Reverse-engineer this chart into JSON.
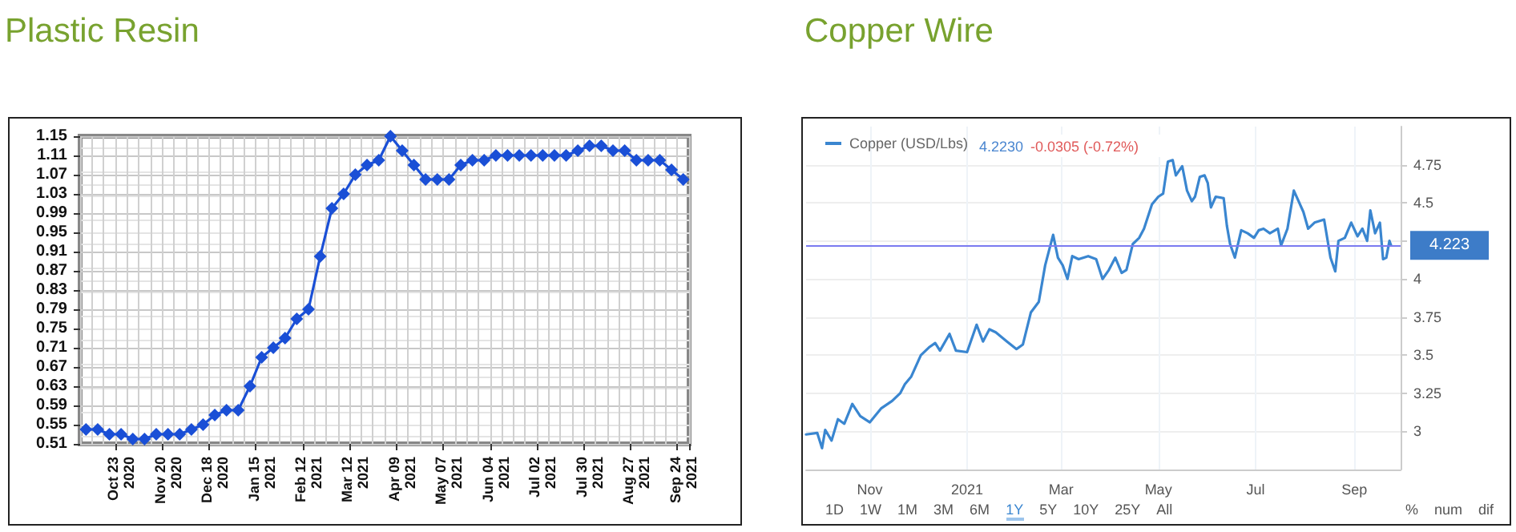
{
  "chart_data": [
    {
      "type": "line",
      "title": "Plastic Resin",
      "categories": [
        null,
        null,
        null,
        "Oct 23\n2020",
        null,
        null,
        null,
        "Nov 20\n2020",
        null,
        null,
        null,
        "Dec 18\n2020",
        null,
        null,
        null,
        "Jan 15\n2021",
        null,
        null,
        null,
        "Feb 12\n2021",
        null,
        null,
        null,
        "Mar 12\n2021",
        null,
        null,
        null,
        "Apr 09\n2021",
        null,
        null,
        null,
        "May 07\n2021",
        null,
        null,
        null,
        "Jun 04\n2021",
        null,
        null,
        null,
        "Jul 02\n2021",
        null,
        null,
        null,
        "Jul 30\n2021",
        null,
        null,
        null,
        "Aug 27\n2021",
        null,
        null,
        null,
        "Sep 24\n2021"
      ],
      "series": [
        {
          "color": "#1a4fd6",
          "values": [
            0.54,
            0.54,
            0.53,
            0.53,
            0.52,
            0.52,
            0.53,
            0.53,
            0.53,
            0.54,
            0.55,
            0.57,
            0.58,
            0.58,
            0.63,
            0.69,
            0.71,
            0.73,
            0.77,
            0.79,
            0.9,
            1.0,
            1.03,
            1.07,
            1.09,
            1.1,
            1.15,
            1.12,
            1.09,
            1.06,
            1.06,
            1.06,
            1.09,
            1.1,
            1.1,
            1.11,
            1.11,
            1.11,
            1.11,
            1.11,
            1.11,
            1.11,
            1.12,
            1.13,
            1.13,
            1.12,
            1.12,
            1.1,
            1.1,
            1.1,
            1.08,
            1.06
          ]
        }
      ],
      "ylim": [
        0.51,
        1.15
      ],
      "yticks": [
        0.51,
        0.55,
        0.59,
        0.63,
        0.67,
        0.71,
        0.75,
        0.79,
        0.83,
        0.87,
        0.91,
        0.95,
        0.99,
        1.03,
        1.07,
        1.11,
        1.15
      ],
      "grid": true,
      "marker": "diamond"
    },
    {
      "type": "line",
      "title": "Copper Wire",
      "x": [
        "2020-09-22",
        "2020-09-29",
        "2020-10-02",
        "2020-10-04",
        "2020-10-08",
        "2020-10-12",
        "2020-10-16",
        "2020-10-21",
        "2020-10-26",
        "2020-11-01",
        "2020-11-08",
        "2020-11-15",
        "2020-11-20",
        "2020-11-23",
        "2020-11-27",
        "2020-12-03",
        "2020-12-08",
        "2020-12-12",
        "2020-12-15",
        "2020-12-21",
        "2020-12-25",
        "2021-01-01",
        "2021-01-07",
        "2021-01-11",
        "2021-01-15",
        "2021-01-19",
        "2021-01-26",
        "2021-02-01",
        "2021-02-05",
        "2021-02-10",
        "2021-02-15",
        "2021-02-19",
        "2021-02-24",
        "2021-02-27",
        "2021-03-02",
        "2021-03-05",
        "2021-03-08",
        "2021-03-12",
        "2021-03-18",
        "2021-03-23",
        "2021-03-27",
        "2021-03-31",
        "2021-04-04",
        "2021-04-08",
        "2021-04-11",
        "2021-04-15",
        "2021-04-19",
        "2021-04-22",
        "2021-04-27",
        "2021-05-01",
        "2021-05-04",
        "2021-05-07",
        "2021-05-10",
        "2021-05-12",
        "2021-05-16",
        "2021-05-19",
        "2021-05-22",
        "2021-05-24",
        "2021-05-27",
        "2021-05-30",
        "2021-06-01",
        "2021-06-03",
        "2021-06-06",
        "2021-06-11",
        "2021-06-13",
        "2021-06-15",
        "2021-06-18",
        "2021-06-22",
        "2021-06-26",
        "2021-06-30",
        "2021-07-03",
        "2021-07-06",
        "2021-07-10",
        "2021-07-15",
        "2021-07-17",
        "2021-07-21",
        "2021-07-25",
        "2021-07-28",
        "2021-07-31",
        "2021-08-03",
        "2021-08-07",
        "2021-08-13",
        "2021-08-17",
        "2021-08-20",
        "2021-08-22",
        "2021-08-26",
        "2021-08-30",
        "2021-09-03",
        "2021-09-06",
        "2021-09-09",
        "2021-09-11",
        "2021-09-14",
        "2021-09-17",
        "2021-09-19",
        "2021-09-21",
        "2021-09-23",
        "2021-09-24"
      ],
      "series": [
        {
          "name": "Copper (USD/Lbs)",
          "color": "#3a86d0",
          "values": [
            2.98,
            2.99,
            2.89,
            3.01,
            2.94,
            3.08,
            3.05,
            3.18,
            3.1,
            3.06,
            3.15,
            3.2,
            3.25,
            3.31,
            3.36,
            3.5,
            3.55,
            3.58,
            3.53,
            3.64,
            3.53,
            3.52,
            3.7,
            3.59,
            3.67,
            3.65,
            3.59,
            3.54,
            3.57,
            3.78,
            3.85,
            4.09,
            4.29,
            4.14,
            4.09,
            4.0,
            4.15,
            4.13,
            4.15,
            4.13,
            4.0,
            4.06,
            4.14,
            4.04,
            4.06,
            4.23,
            4.27,
            4.33,
            4.49,
            4.54,
            4.56,
            4.77,
            4.78,
            4.68,
            4.74,
            4.58,
            4.51,
            4.54,
            4.67,
            4.68,
            4.63,
            4.47,
            4.54,
            4.53,
            4.35,
            4.23,
            4.14,
            4.32,
            4.3,
            4.27,
            4.32,
            4.33,
            4.3,
            4.33,
            4.22,
            4.33,
            4.58,
            4.51,
            4.44,
            4.33,
            4.37,
            4.39,
            4.14,
            4.05,
            4.25,
            4.27,
            4.37,
            4.28,
            4.33,
            4.25,
            4.45,
            4.3,
            4.37,
            4.13,
            4.14,
            4.25,
            4.22
          ]
        }
      ],
      "xlim": [
        "2020-09-22",
        "2021-09-30"
      ],
      "xticks": [
        {
          "value": "2020-11-01",
          "label": "Nov"
        },
        {
          "value": "2021-01-01",
          "label": "2021"
        },
        {
          "value": "2021-03-01",
          "label": "Mar"
        },
        {
          "value": "2021-05-01",
          "label": "May"
        },
        {
          "value": "2021-07-01",
          "label": "Jul"
        },
        {
          "value": "2021-09-01",
          "label": "Sep"
        }
      ],
      "ylim": [
        2.75,
        5
      ],
      "yticks": [
        3,
        3.25,
        3.5,
        3.75,
        4,
        {
          "value": 4.25,
          "label": null
        },
        4.5,
        4.75
      ],
      "ref_lines": [
        {
          "axis": "y",
          "value": 4.223,
          "label": "4.223",
          "color": "#7b7bf0"
        }
      ],
      "grid": true,
      "legend": "top left",
      "annotations": [
        "4.2230",
        "-0.0305 (-0.72%)",
        "1D",
        "1W",
        "1M",
        "3M",
        "6M",
        "1Y",
        "5Y",
        "10Y",
        "25Y",
        "All",
        "%",
        "num",
        "dif"
      ]
    }
  ]
}
